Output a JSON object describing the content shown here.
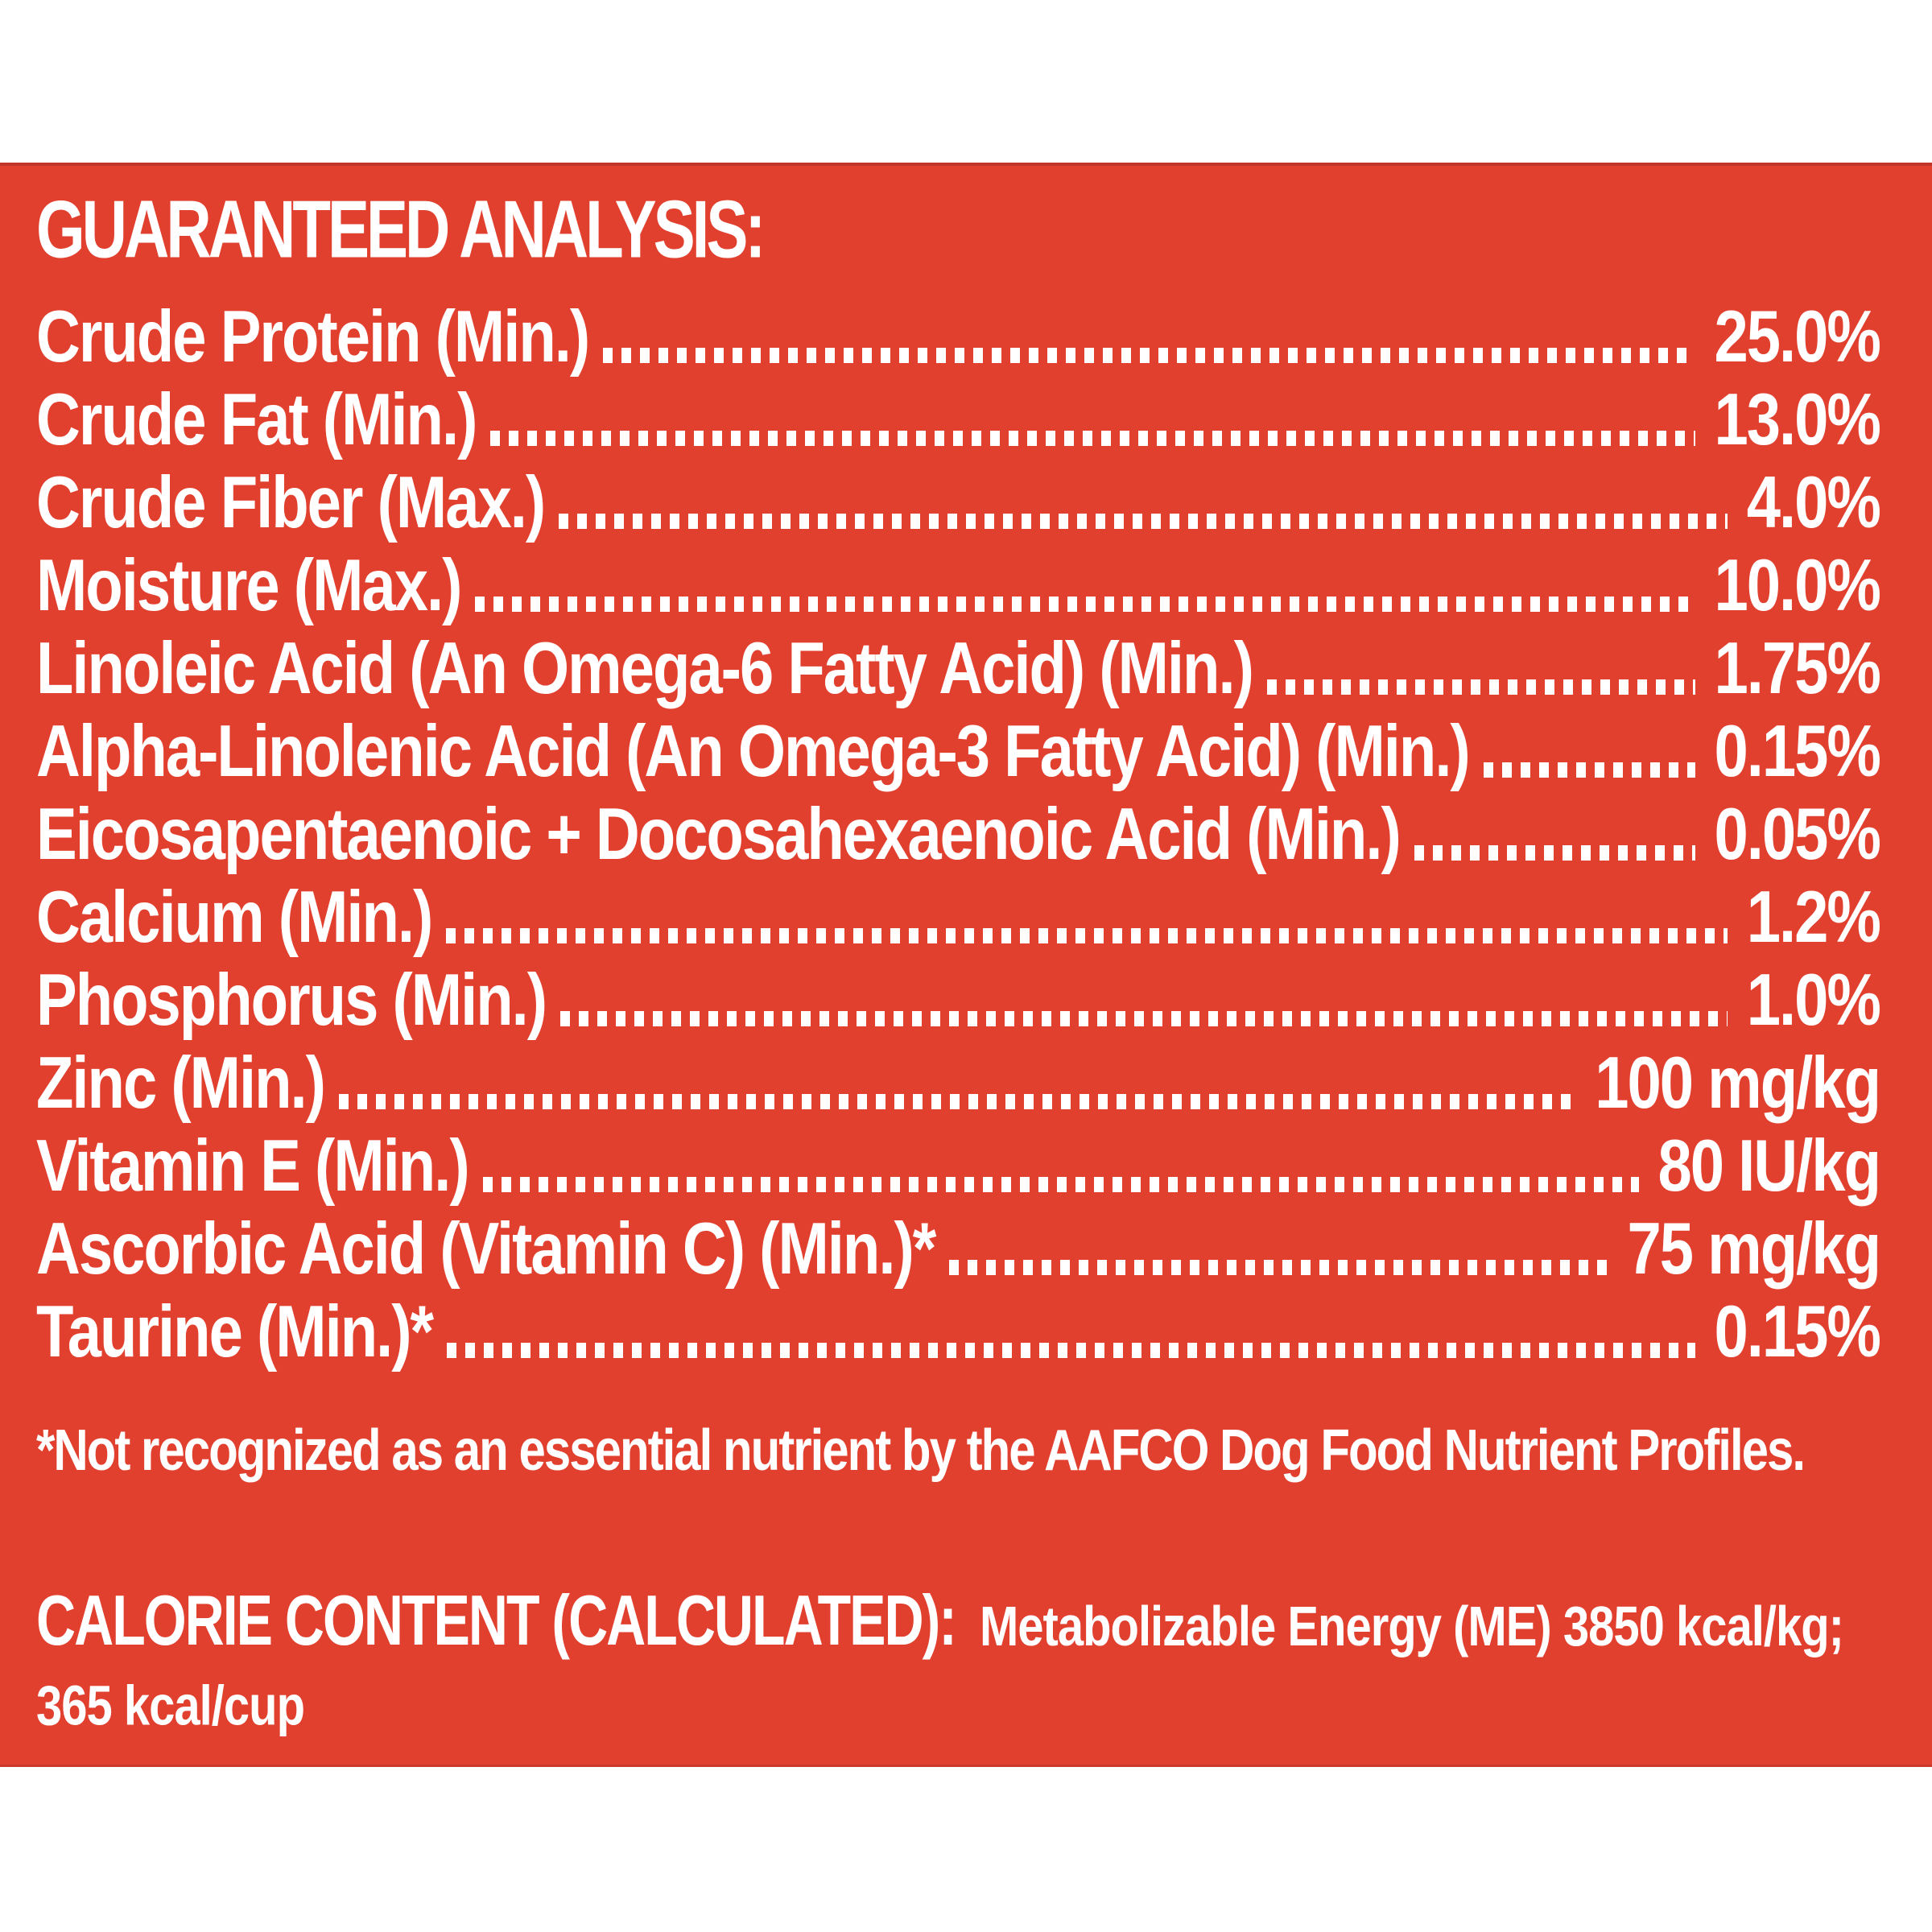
{
  "panel": {
    "background_color": "#E2402F",
    "text_color": "#FFFFFF",
    "title": "GUARANTEED ANALYSIS:",
    "rows": [
      {
        "label": "Crude Protein (Min.)",
        "value": "25.0%"
      },
      {
        "label": "Crude Fat (Min.)",
        "value": "13.0%"
      },
      {
        "label": "Crude Fiber (Max.)",
        "value": "4.0%"
      },
      {
        "label": "Moisture (Max.)",
        "value": "10.0%"
      },
      {
        "label": "Linoleic Acid (An Omega-6 Fatty Acid) (Min.)",
        "value": "1.75%"
      },
      {
        "label": "Alpha-Linolenic Acid (An Omega-3 Fatty Acid) (Min.)",
        "value": "0.15%"
      },
      {
        "label": "Eicosapentaenoic + Docosahexaenoic Acid (Min.)",
        "value": "0.05%"
      },
      {
        "label": "Calcium (Min.)",
        "value": "1.2%"
      },
      {
        "label": "Phosphorus (Min.)",
        "value": "1.0%"
      },
      {
        "label": "Zinc (Min.)",
        "value": "100 mg/kg"
      },
      {
        "label": "Vitamin E (Min.)",
        "value": "80 IU/kg"
      },
      {
        "label": "Ascorbic Acid (Vitamin C) (Min.)*",
        "value": "75 mg/kg"
      },
      {
        "label": "Taurine (Min.)*",
        "value": "0.15%"
      }
    ],
    "footnote": "*Not recognized as an essential nutrient by the AAFCO Dog Food Nutrient Profiles.",
    "calorie": {
      "heading": "CALORIE CONTENT (CALCULATED):",
      "text": "Metabolizable Energy (ME) 3850 kcal/kg;",
      "line2": "365 kcal/cup"
    }
  }
}
